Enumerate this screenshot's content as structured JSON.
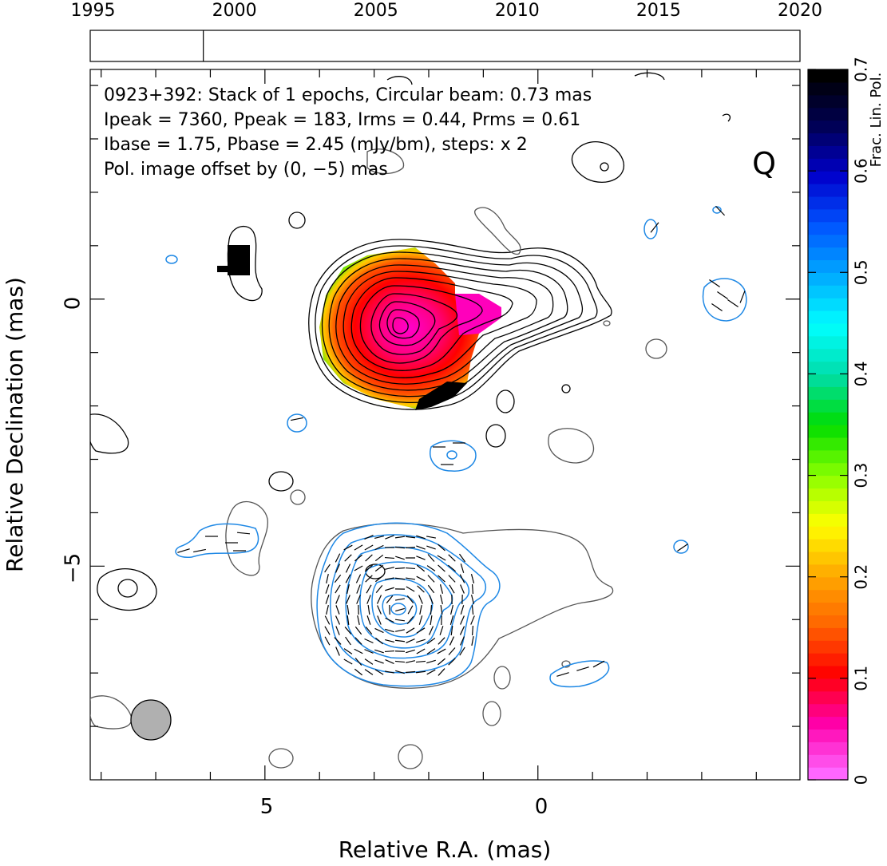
{
  "timeline": {
    "year_labels": [
      "1995",
      "2000",
      "2005",
      "2010",
      "2015",
      "2020"
    ],
    "year_values": [
      1995,
      2000,
      2005,
      2010,
      2015,
      2020
    ],
    "range": [
      1994.9,
      2020.0
    ],
    "epoch_markers": [
      1998.9
    ]
  },
  "annotations": {
    "line1": "0923+392: Stack of 1 epochs, Circular beam: 0.73 mas",
    "line2": "Ipeak = 7360, Ppeak = 183, Irms = 0.44, Prms = 0.61",
    "line3": "Ibase = 1.75, Pbase = 2.45 (mJy/bm), steps: x 2",
    "line4": "Pol. image offset by (0, −5) mas",
    "band": "Q",
    "pol_note_color": "#1e88e5"
  },
  "axes": {
    "xlabel": "Relative R.A. (mas)",
    "ylabel": "Relative Declination (mas)",
    "x_tick_labels": [
      "5",
      "0"
    ],
    "y_tick_labels": [
      "0",
      "−5"
    ]
  },
  "colorbar": {
    "label": "Frac. Lin. Pol.",
    "tick_labels": [
      "0",
      "0.1",
      "0.2",
      "0.3",
      "0.4",
      "0.5",
      "0.6",
      "0.7"
    ],
    "range": [
      0,
      0.7
    ],
    "colors": [
      "#ff66ff",
      "#ff00aa",
      "#ff0000",
      "#ff6600",
      "#ffaa00",
      "#ffff00",
      "#88ff00",
      "#00dd00",
      "#00ddaa",
      "#00ffff",
      "#00aaff",
      "#0055ff",
      "#0000cc",
      "#000055",
      "#000000"
    ]
  },
  "chart_data": {
    "type": "heatmap",
    "title": "0923+392: Stack of 1 epochs, Circular beam: 0.73 mas",
    "xlabel": "Relative R.A. (mas)",
    "ylabel": "Relative Declination (mas)",
    "xlim": [
      8.2,
      -4.8
    ],
    "ylim": [
      -9.0,
      4.3
    ],
    "x_ticks": [
      5,
      0
    ],
    "y_ticks": [
      0,
      -5
    ],
    "beam_fwhm_mas": 0.73,
    "pol_offset_mas": [
      0,
      -5
    ],
    "ipeak_mJy": 7360,
    "ppeak_mJy": 183,
    "irms_mJy": 0.44,
    "prms_mJy": 0.61,
    "ibase_mJy": 1.75,
    "pbase_mJy": 2.45,
    "contour_step": 2,
    "colorbar_range": [
      0,
      0.7
    ],
    "colorbar_label": "Frac. Lin. Pol."
  }
}
